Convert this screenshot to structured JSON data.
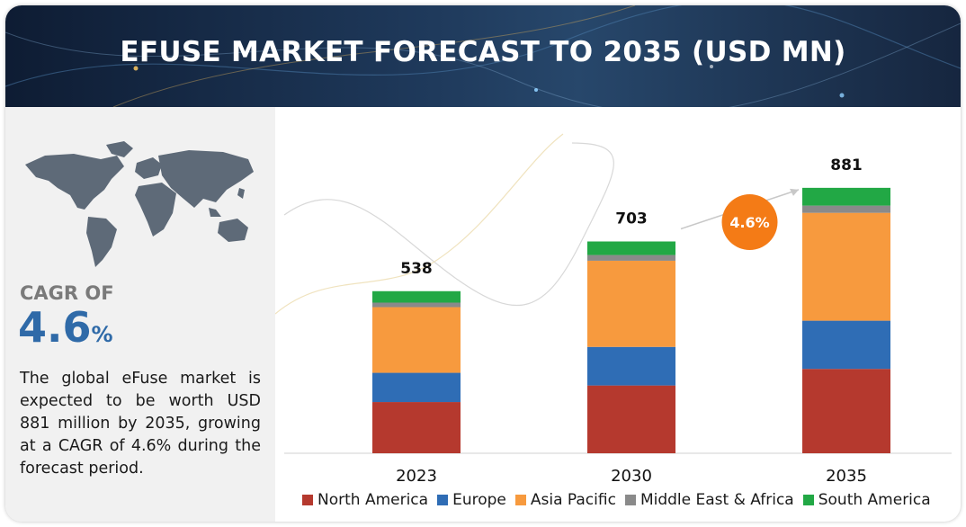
{
  "header": {
    "title": "EFUSE MARKET FORECAST TO 2035 (USD MN)"
  },
  "summary": {
    "cagr_label": "CAGR OF",
    "cagr_value": "4.6",
    "cagr_unit": "%",
    "description": "The global eFuse market is expected to be worth USD 881 million by 2035, growing at a CAGR of 4.6% during the forecast period."
  },
  "colors": {
    "north_america": "#b5392e",
    "europe": "#2f6db5",
    "asia_pacific": "#f79a3e",
    "middle_east_africa": "#8a8a8a",
    "south_america": "#22a845",
    "cagr_bubble": "#f47b16",
    "cagr_text_blue": "#2f6aa8"
  },
  "chart_data": {
    "type": "bar",
    "stacked": true,
    "title": "EFUSE MARKET FORECAST TO 2035 (USD MN)",
    "categories": [
      "2023",
      "2030",
      "2035"
    ],
    "totals": [
      538,
      703,
      881
    ],
    "series": [
      {
        "name": "North America",
        "color": "#b5392e",
        "values": [
          170,
          225,
          280
        ]
      },
      {
        "name": "Europe",
        "color": "#2f6db5",
        "values": [
          97,
          128,
          160
        ]
      },
      {
        "name": "Asia Pacific",
        "color": "#f79a3e",
        "values": [
          218,
          286,
          358
        ]
      },
      {
        "name": "Middle East & Africa",
        "color": "#8a8a8a",
        "values": [
          15,
          19,
          24
        ]
      },
      {
        "name": "South America",
        "color": "#22a845",
        "values": [
          38,
          45,
          59
        ]
      }
    ],
    "annotation": {
      "text": "4.6%",
      "between": [
        "2030",
        "2035"
      ]
    },
    "ylim": [
      0,
      1000
    ],
    "grid": false,
    "legend_position": "bottom"
  }
}
